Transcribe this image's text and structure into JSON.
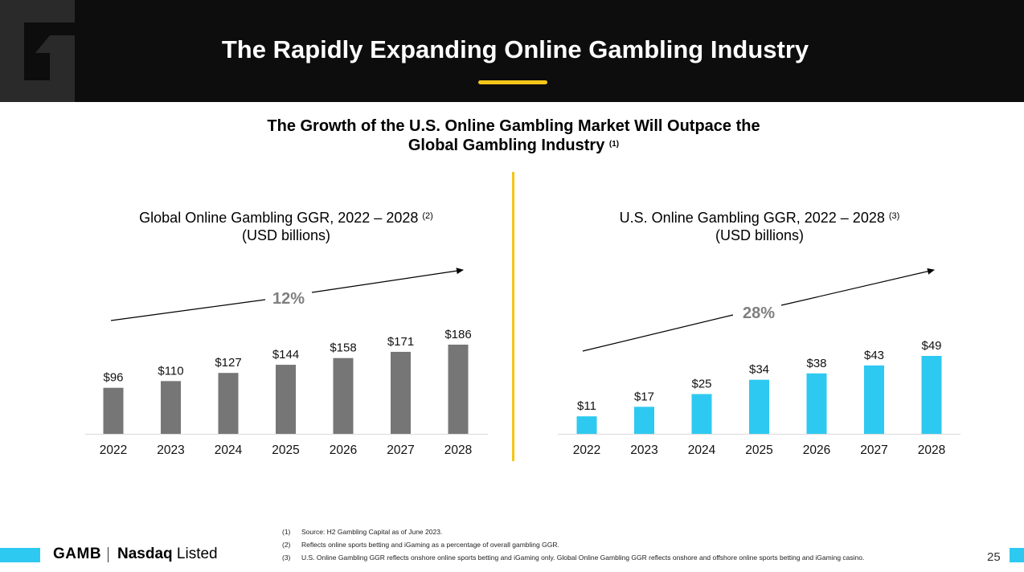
{
  "header": {
    "title": "The Rapidly Expanding Online Gambling Industry"
  },
  "subtitle": {
    "line1": "The Growth of the U.S. Online Gambling Market Will Outpace the",
    "line2": "Global Gambling Industry",
    "note_ref": "(1)"
  },
  "charts": {
    "global": {
      "title_line1": "Global Online Gambling GGR, 2022 – 2028",
      "title_ref": "(2)",
      "title_line2": "(USD billions)",
      "growth_label": "12%"
    },
    "us": {
      "title_line1": "U.S. Online Gambling GGR, 2022 – 2028",
      "title_ref": "(3)",
      "title_line2": "(USD billions)",
      "growth_label": "28%"
    }
  },
  "chart_data": [
    {
      "type": "bar",
      "title": "Global Online Gambling GGR, 2022 – 2028 (USD billions)",
      "categories": [
        "2022",
        "2023",
        "2024",
        "2025",
        "2026",
        "2027",
        "2028"
      ],
      "values": [
        96,
        110,
        127,
        144,
        158,
        171,
        186
      ],
      "data_labels": [
        "$96",
        "$110",
        "$127",
        "$144",
        "$158",
        "$171",
        "$186"
      ],
      "bar_color": "#767676",
      "annotation": "12%",
      "grid": false
    },
    {
      "type": "bar",
      "title": "U.S. Online Gambling GGR, 2022 – 2028 (USD billions)",
      "categories": [
        "2022",
        "2023",
        "2024",
        "2025",
        "2026",
        "2027",
        "2028"
      ],
      "values": [
        11,
        17,
        25,
        34,
        38,
        43,
        49
      ],
      "data_labels": [
        "$11",
        "$17",
        "$25",
        "$34",
        "$38",
        "$43",
        "$49"
      ],
      "bar_color": "#2ec9f0",
      "annotation": "28%",
      "grid": false
    }
  ],
  "footer": {
    "brand": "GAMB",
    "exchange_bold": "Nasdaq",
    "exchange_rest": "Listed",
    "page_number": "25",
    "notes": [
      {
        "num": "(1)",
        "text": "Source: H2 Gambling Capital as of June 2023."
      },
      {
        "num": "(2)",
        "text": "Reflects online sports betting and iGaming as a percentage of overall gambling GGR."
      },
      {
        "num": "(3)",
        "text": "U.S. Online Gambling GGR reflects onshore online sports betting and iGaming only. Global Online Gambling GGR reflects onshore and offshore online sports betting and iGaming casino."
      }
    ]
  },
  "colors": {
    "header_bg": "#0d0d0d",
    "accent_yellow": "#f5c518",
    "global_bar": "#767676",
    "us_bar": "#2ec9f0"
  }
}
